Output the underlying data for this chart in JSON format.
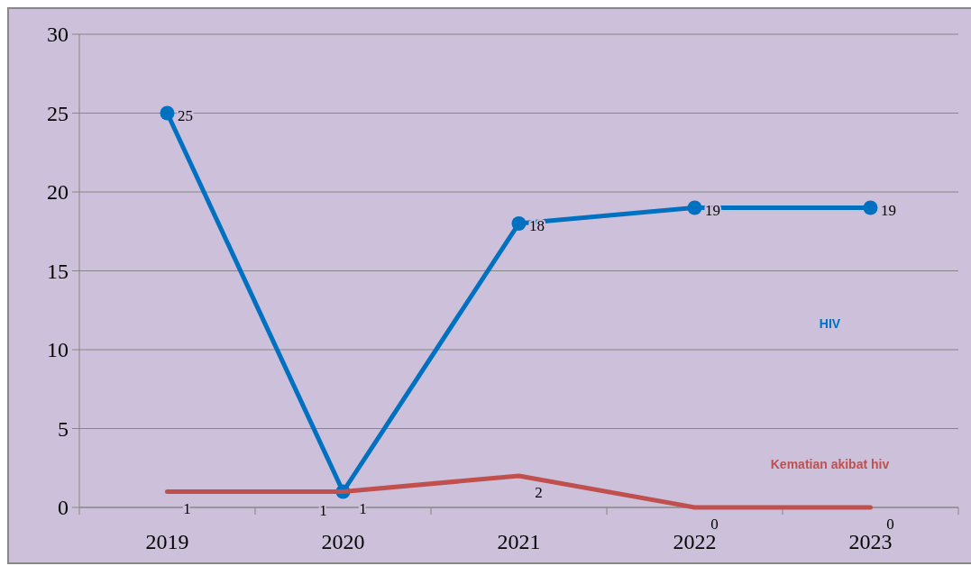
{
  "chart_data": {
    "type": "line",
    "categories": [
      "2019",
      "2020",
      "2021",
      "2022",
      "2023"
    ],
    "series": [
      {
        "name": "HIV",
        "color": "#0070c0",
        "values": [
          25,
          1,
          18,
          19,
          19
        ],
        "marker": "circle"
      },
      {
        "name": "Kematian akibat  hiv",
        "color": "#c0504d",
        "values": [
          1,
          1,
          2,
          0,
          0
        ],
        "marker": "none"
      }
    ],
    "ylim": [
      0,
      30
    ],
    "yticks": [
      0,
      5,
      10,
      15,
      20,
      25,
      30
    ],
    "grid": "y",
    "data_labels": true
  }
}
